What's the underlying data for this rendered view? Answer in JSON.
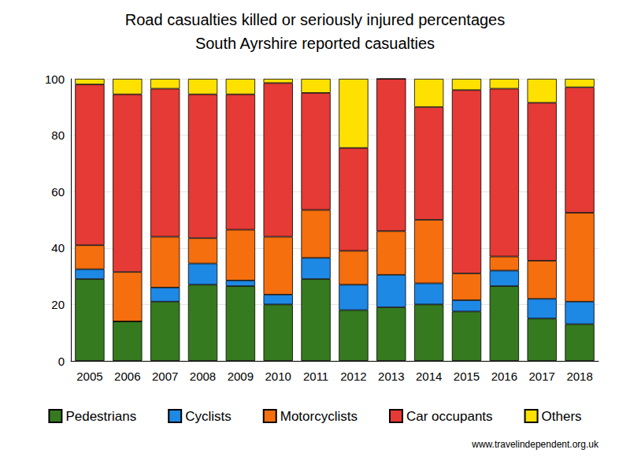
{
  "chart_data": {
    "type": "bar",
    "title": "Road casualties killed or seriously injured percentages",
    "subtitle": "South Ayrshire reported casualties",
    "annotations": [
      "www.travelindependent.org.uk"
    ],
    "categories": [
      "2005",
      "2006",
      "2007",
      "2008",
      "2009",
      "2010",
      "2011",
      "2012",
      "2013",
      "2014",
      "2015",
      "2016",
      "2017",
      "2018"
    ],
    "series": [
      {
        "name": "Pedestrians",
        "color": "#367a1f",
        "values": [
          29,
          14,
          21,
          27,
          26.5,
          20,
          29,
          18,
          19,
          20,
          17.5,
          26.5,
          15,
          13
        ]
      },
      {
        "name": "Cyclists",
        "color": "#1e88e5",
        "values": [
          3.5,
          0,
          5,
          7.5,
          2,
          3.5,
          7.5,
          9,
          11.5,
          7.5,
          4,
          5.5,
          7,
          8
        ]
      },
      {
        "name": "Motorcyclists",
        "color": "#f56f0e",
        "values": [
          8.5,
          17.5,
          18,
          9,
          18,
          20.5,
          17,
          12,
          15.5,
          22.5,
          9.5,
          5,
          13.5,
          31.5
        ]
      },
      {
        "name": "Car occupants",
        "color": "#e53a35",
        "values": [
          57,
          63,
          52.5,
          51,
          48,
          54.5,
          41.5,
          36.5,
          54,
          40,
          65,
          59.5,
          56,
          44.5
        ]
      },
      {
        "name": "Others",
        "color": "#ffe100",
        "values": [
          2,
          5.5,
          3.5,
          5.5,
          5.5,
          1.5,
          5,
          24.5,
          0,
          10,
          4,
          3.5,
          8.5,
          3
        ]
      }
    ],
    "ylim": [
      0,
      100
    ],
    "yticks": [
      0,
      20,
      40,
      60,
      80,
      100
    ],
    "grid": true,
    "stacked": true,
    "legend": "bottom"
  }
}
